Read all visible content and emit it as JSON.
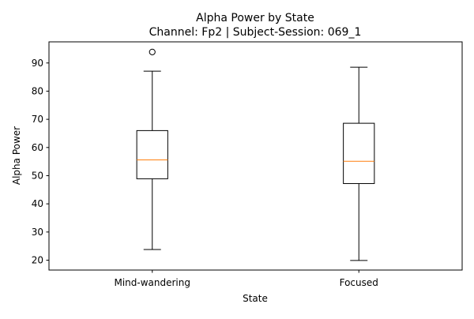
{
  "chart_data": {
    "type": "box",
    "title": "Alpha Power by State",
    "subtitle": "Channel: Fp2 | Subject-Session: 069_1",
    "xlabel": "State",
    "ylabel": "Alpha Power",
    "ylim": [
      16.5,
      97.5
    ],
    "yticks": [
      20,
      30,
      40,
      50,
      60,
      70,
      80,
      90
    ],
    "categories": [
      "Mind-wandering",
      "Focused"
    ],
    "boxes": [
      {
        "category": "Mind-wandering",
        "whisker_low": 23.8,
        "q1": 48.9,
        "median": 55.6,
        "q3": 66.0,
        "whisker_high": 87.1,
        "outliers": [
          93.9
        ]
      },
      {
        "category": "Focused",
        "whisker_low": 19.9,
        "q1": 47.2,
        "median": 55.1,
        "q3": 68.6,
        "whisker_high": 88.5,
        "outliers": []
      }
    ],
    "grid": false,
    "colors": {
      "box": "#000000",
      "median": "#ff7f0e",
      "axes": "#000000"
    }
  }
}
